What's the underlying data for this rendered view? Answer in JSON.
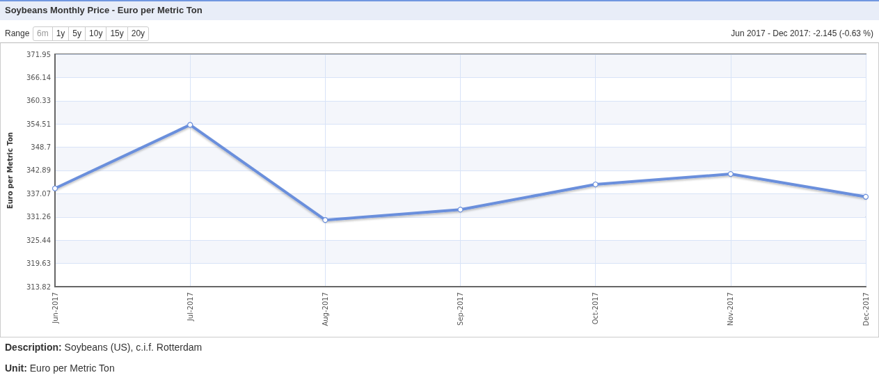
{
  "chart_data": {
    "type": "line",
    "title": "Soybeans Monthly Price - Euro per Metric Ton",
    "ylabel": "Euro per Metric Ton",
    "categories": [
      "Jun-2017",
      "Jul-2017",
      "Aug-2017",
      "Sep-2017",
      "Oct-2017",
      "Nov-2017",
      "Dec-2017"
    ],
    "series": [
      {
        "color": "#6b8fdc",
        "values": [
          338.4,
          354.3,
          330.5,
          333.1,
          339.4,
          342.0,
          336.3
        ]
      }
    ],
    "ylim": [
      313.82,
      371.95
    ],
    "yticks": [
      313.82,
      319.63,
      325.44,
      331.26,
      337.07,
      342.89,
      348.7,
      354.51,
      360.33,
      366.14,
      371.95
    ],
    "grid": true,
    "marker": "circle",
    "line_style": "solid",
    "annotations": [
      "Range",
      "6m",
      "1y",
      "5y",
      "10y",
      "15y",
      "20y",
      "Jun 2017 - Dec 2017: -2.145 (-0.63 %)",
      "Description: Soybeans (US), c.i.f. Rotterdam",
      "Unit: Euro per Metric Ton"
    ]
  }
}
